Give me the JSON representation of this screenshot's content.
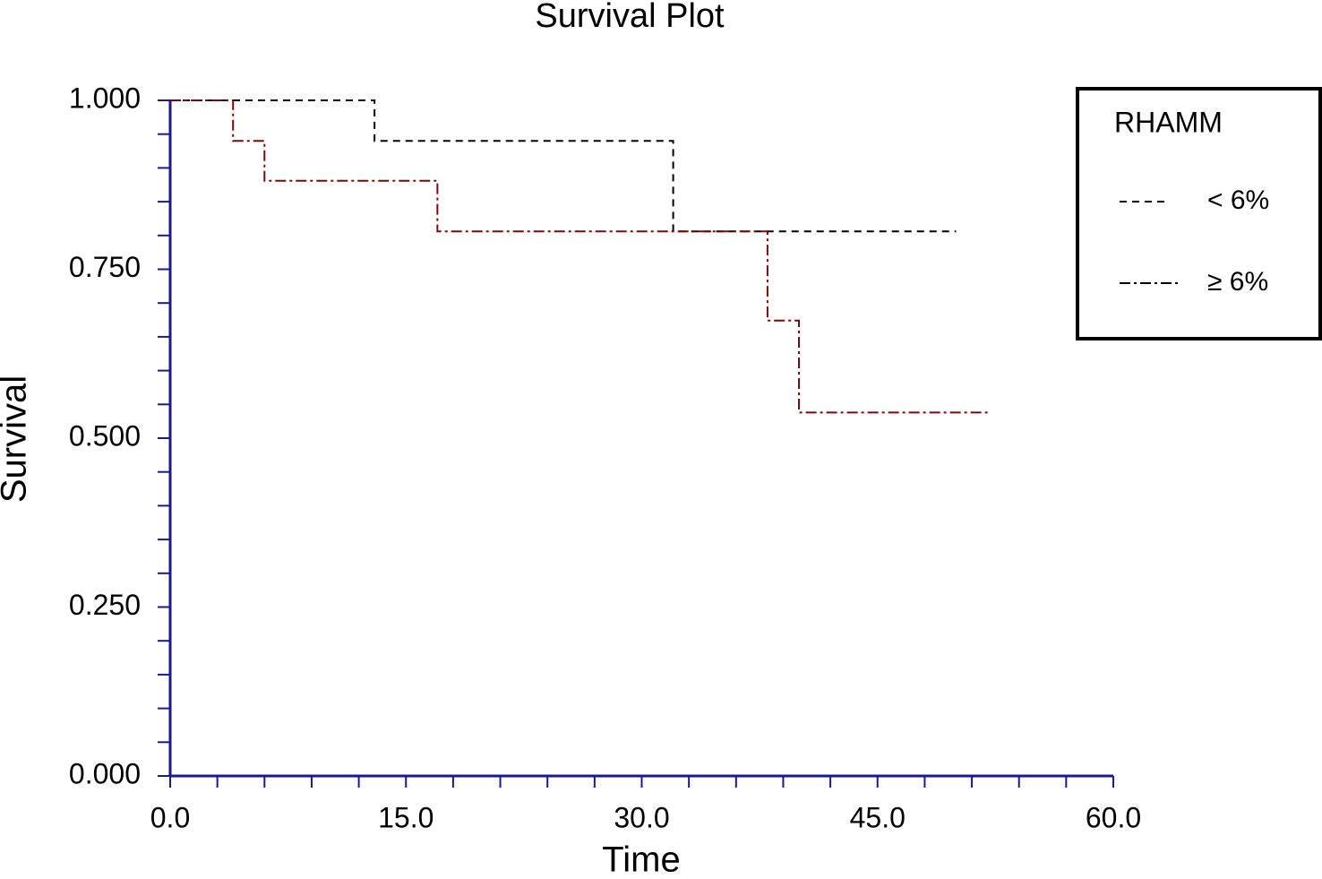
{
  "chart_data": {
    "type": "step",
    "title": "Survival Plot",
    "x_label": "Time",
    "y_label": "Survival",
    "series": [
      {
        "name": "< 6%",
        "color": "#000000",
        "dash": "8,6",
        "x": [
          0,
          13,
          13,
          32,
          32,
          50
        ],
        "values": [
          1.0,
          1.0,
          0.94,
          0.94,
          0.806,
          0.806
        ]
      },
      {
        "name": "≥ 6%",
        "color": "#7a0a0a",
        "dash": "12,4,3,4",
        "x": [
          0,
          4,
          4,
          6,
          6,
          17,
          17,
          38,
          38,
          40,
          40,
          52
        ],
        "values": [
          1.0,
          1.0,
          0.94,
          0.94,
          0.881,
          0.881,
          0.806,
          0.806,
          0.674,
          0.674,
          0.538,
          0.538
        ]
      }
    ],
    "legend_title": "RHAMM",
    "legend_position": "top-right",
    "xlim": [
      0,
      60
    ],
    "ylim": [
      0,
      1
    ],
    "xticks": [
      {
        "value": 0,
        "label": "0.0"
      },
      {
        "value": 15,
        "label": "15.0"
      },
      {
        "value": 30,
        "label": "30.0"
      },
      {
        "value": 45,
        "label": "45.0"
      },
      {
        "value": 60,
        "label": "60.0"
      }
    ],
    "yticks": [
      {
        "value": 0,
        "label": "0.000"
      },
      {
        "value": 0.25,
        "label": "0.250"
      },
      {
        "value": 0.5,
        "label": "0.500"
      },
      {
        "value": 0.75,
        "label": "0.750"
      },
      {
        "value": 1,
        "label": "1.000"
      }
    ],
    "xminorticks": [
      3,
      6,
      9,
      12,
      18,
      21,
      24,
      27,
      33,
      36,
      39,
      42,
      48,
      51,
      54,
      57
    ],
    "yminorticks": [
      0.05,
      0.1,
      0.15,
      0.2,
      0.3,
      0.35,
      0.4,
      0.45,
      0.55,
      0.6,
      0.65,
      0.7,
      0.8,
      0.85,
      0.9,
      0.95
    ],
    "axis_color": "#1a1a8c"
  }
}
